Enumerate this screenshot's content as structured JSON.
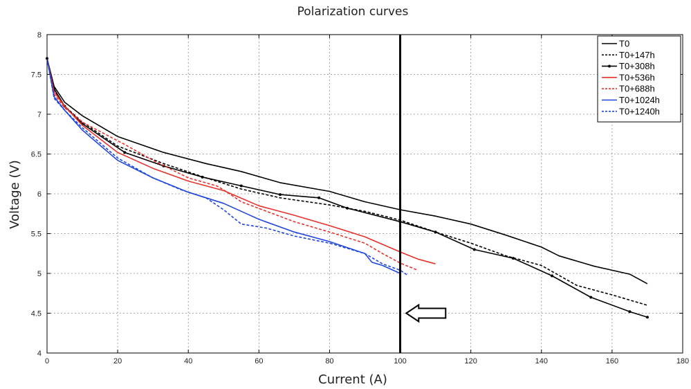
{
  "chart_data": {
    "type": "line",
    "title": "Polarization curves",
    "xlabel": "Current (A)",
    "ylabel": "Voltage (V)",
    "xlim": [
      0,
      180
    ],
    "ylim": [
      4,
      8
    ],
    "x_ticks": [
      0,
      20,
      40,
      60,
      80,
      100,
      120,
      140,
      160,
      180
    ],
    "x_tick_labels": [
      "0",
      "20",
      "40",
      "60",
      "80",
      "100",
      "120",
      "140",
      "160",
      "180"
    ],
    "y_ticks": [
      4,
      4.5,
      5,
      5.5,
      6,
      6.5,
      7,
      7.5,
      8
    ],
    "y_tick_labels": [
      "4",
      "4.5",
      "5",
      "5.5",
      "6",
      "6.5",
      "7",
      "7.5",
      "8"
    ],
    "grid": true,
    "legend_position": "top-right",
    "vertical_marker": {
      "x": 100,
      "color": "#000000"
    },
    "arrow_annotation": {
      "x": 107,
      "y": 4.5,
      "direction": "left"
    },
    "series": [
      {
        "name": "T0",
        "color": "#000000",
        "style": "solid",
        "marker": false,
        "points": [
          [
            0,
            7.7
          ],
          [
            2,
            7.35
          ],
          [
            5,
            7.15
          ],
          [
            10,
            6.98
          ],
          [
            20,
            6.72
          ],
          [
            33,
            6.52
          ],
          [
            45,
            6.38
          ],
          [
            55,
            6.28
          ],
          [
            66,
            6.14
          ],
          [
            80,
            6.03
          ],
          [
            90,
            5.9
          ],
          [
            100,
            5.8
          ],
          [
            110,
            5.72
          ],
          [
            120,
            5.62
          ],
          [
            130,
            5.48
          ],
          [
            140,
            5.33
          ],
          [
            145,
            5.22
          ],
          [
            155,
            5.09
          ],
          [
            160,
            5.04
          ],
          [
            165,
            4.99
          ],
          [
            170,
            4.87
          ]
        ]
      },
      {
        "name": "T0+147h",
        "color": "#000000",
        "style": "dashed",
        "marker": false,
        "points": [
          [
            0,
            7.7
          ],
          [
            2,
            7.3
          ],
          [
            5,
            7.1
          ],
          [
            10,
            6.9
          ],
          [
            20,
            6.6
          ],
          [
            33,
            6.38
          ],
          [
            45,
            6.2
          ],
          [
            55,
            6.06
          ],
          [
            66,
            5.95
          ],
          [
            80,
            5.86
          ],
          [
            90,
            5.78
          ],
          [
            100,
            5.67
          ],
          [
            110,
            5.52
          ],
          [
            120,
            5.38
          ],
          [
            130,
            5.22
          ],
          [
            140,
            5.1
          ],
          [
            150,
            4.85
          ],
          [
            160,
            4.73
          ],
          [
            170,
            4.6
          ]
        ]
      },
      {
        "name": "T0+308h",
        "color": "#000000",
        "style": "solid",
        "marker": true,
        "points": [
          [
            0,
            7.7
          ],
          [
            2,
            7.32
          ],
          [
            5,
            7.1
          ],
          [
            10,
            6.88
          ],
          [
            22,
            6.52
          ],
          [
            33,
            6.35
          ],
          [
            44,
            6.21
          ],
          [
            55,
            6.1
          ],
          [
            66,
            5.99
          ],
          [
            77,
            5.95
          ],
          [
            85,
            5.82
          ],
          [
            100,
            5.65
          ],
          [
            110,
            5.52
          ],
          [
            121,
            5.3
          ],
          [
            132,
            5.19
          ],
          [
            143,
            4.97
          ],
          [
            154,
            4.7
          ],
          [
            165,
            4.52
          ],
          [
            170,
            4.45
          ]
        ]
      },
      {
        "name": "T0+536h",
        "color": "#e8312a",
        "style": "solid",
        "marker": false,
        "points": [
          [
            0,
            7.7
          ],
          [
            2,
            7.28
          ],
          [
            5,
            7.1
          ],
          [
            10,
            6.86
          ],
          [
            20,
            6.52
          ],
          [
            30,
            6.32
          ],
          [
            40,
            6.16
          ],
          [
            45,
            6.1
          ],
          [
            50,
            6.04
          ],
          [
            60,
            5.85
          ],
          [
            70,
            5.73
          ],
          [
            80,
            5.6
          ],
          [
            90,
            5.46
          ],
          [
            100,
            5.27
          ],
          [
            105,
            5.18
          ],
          [
            110,
            5.12
          ]
        ]
      },
      {
        "name": "T0+688h",
        "color": "#e8312a",
        "style": "dashed",
        "marker": false,
        "points": [
          [
            0,
            7.7
          ],
          [
            2,
            7.25
          ],
          [
            5,
            7.08
          ],
          [
            10,
            6.9
          ],
          [
            22,
            6.62
          ],
          [
            30,
            6.42
          ],
          [
            40,
            6.2
          ],
          [
            48,
            6.1
          ],
          [
            50,
            6.05
          ],
          [
            55,
            5.9
          ],
          [
            70,
            5.65
          ],
          [
            80,
            5.52
          ],
          [
            90,
            5.38
          ],
          [
            95,
            5.25
          ],
          [
            100,
            5.13
          ],
          [
            105,
            5.04
          ]
        ]
      },
      {
        "name": "T0+1024h",
        "color": "#1f44e0",
        "style": "solid",
        "marker": false,
        "points": [
          [
            0,
            7.7
          ],
          [
            2,
            7.22
          ],
          [
            5,
            7.05
          ],
          [
            10,
            6.8
          ],
          [
            20,
            6.42
          ],
          [
            30,
            6.2
          ],
          [
            40,
            6.02
          ],
          [
            50,
            5.88
          ],
          [
            60,
            5.68
          ],
          [
            70,
            5.52
          ],
          [
            80,
            5.4
          ],
          [
            90,
            5.25
          ],
          [
            92,
            5.14
          ],
          [
            95,
            5.1
          ],
          [
            100,
            5.0
          ]
        ]
      },
      {
        "name": "T0+1240h",
        "color": "#1f44e0",
        "style": "dashed",
        "marker": false,
        "points": [
          [
            0,
            7.7
          ],
          [
            2,
            7.2
          ],
          [
            5,
            7.05
          ],
          [
            10,
            6.83
          ],
          [
            20,
            6.45
          ],
          [
            30,
            6.2
          ],
          [
            38,
            6.05
          ],
          [
            45,
            5.95
          ],
          [
            50,
            5.8
          ],
          [
            55,
            5.62
          ],
          [
            62,
            5.57
          ],
          [
            70,
            5.47
          ],
          [
            80,
            5.38
          ],
          [
            90,
            5.25
          ],
          [
            95,
            5.12
          ],
          [
            100,
            5.04
          ],
          [
            102,
            4.98
          ]
        ]
      }
    ]
  }
}
